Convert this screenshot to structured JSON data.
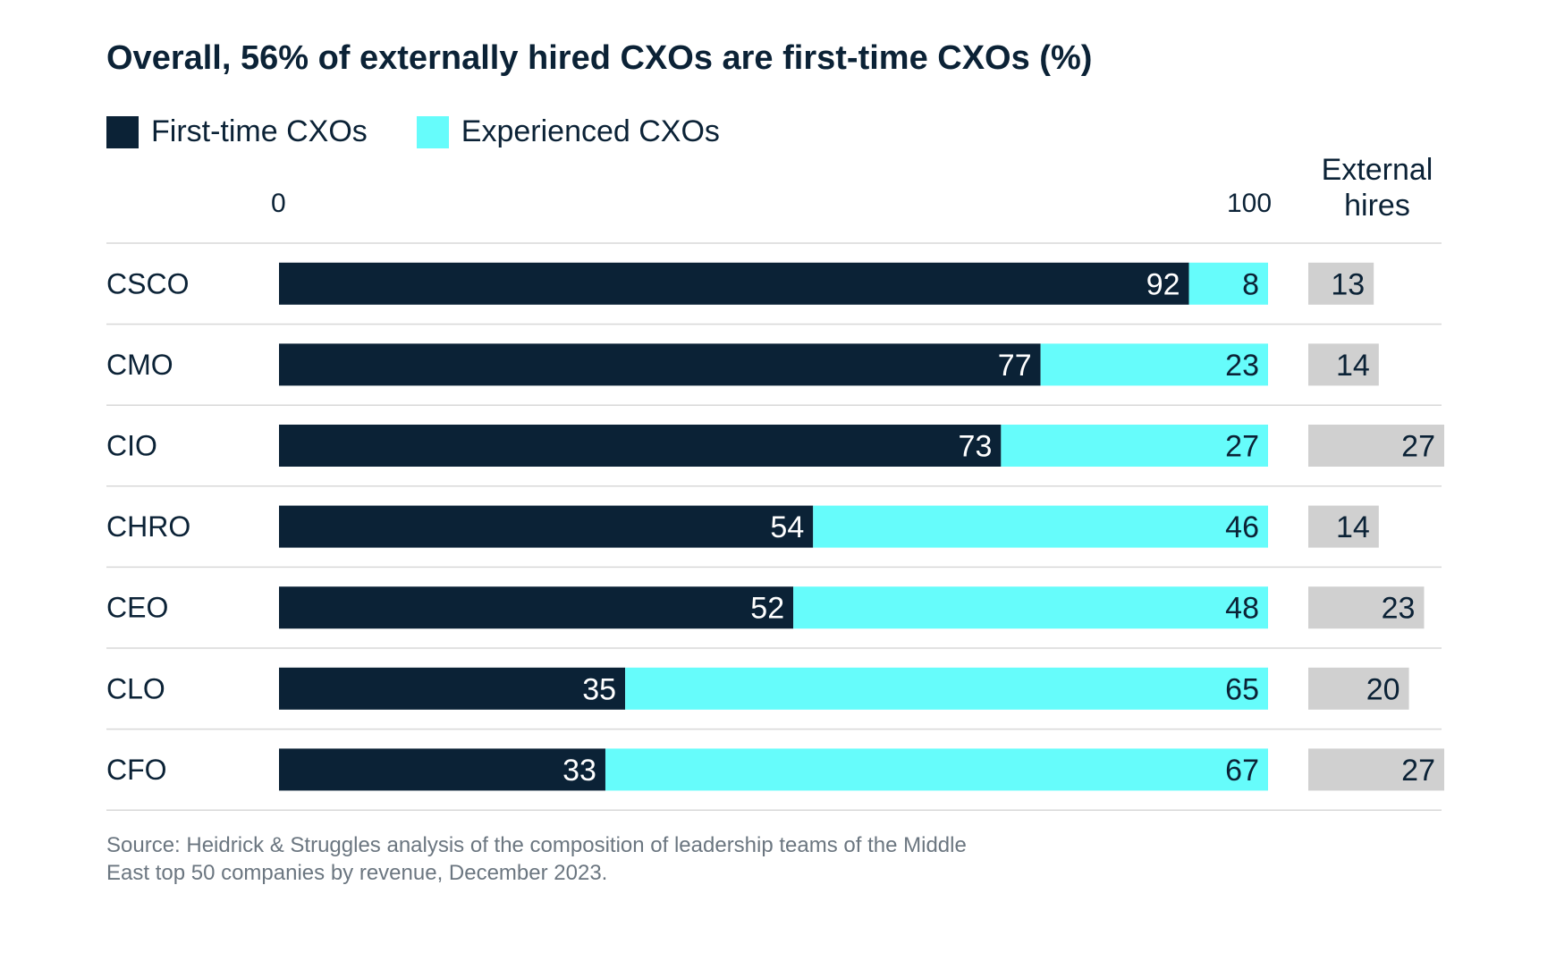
{
  "title": "Overall, 56% of externally hired CXOs are first-time CXOs (%)",
  "legend": [
    {
      "label": "First-time CXOs",
      "color": "#0b2236"
    },
    {
      "label": "Experienced CXOs",
      "color": "#66fcfb"
    }
  ],
  "axis": {
    "min_label": "0",
    "max_label": "100"
  },
  "hires_header": {
    "line1": "External",
    "line2": "hires"
  },
  "source": "Source: Heidrick & Struggles analysis of the composition of leadership teams of the Middle East top 50 companies by revenue, December 2023.",
  "chart_data": {
    "type": "bar",
    "orientation": "horizontal",
    "stacked": true,
    "title": "Overall, 56% of externally hired CXOs are first-time CXOs (%)",
    "categories": [
      "CSCO",
      "CMO",
      "CIO",
      "CHRO",
      "CEO",
      "CLO",
      "CFO"
    ],
    "series": [
      {
        "name": "First-time CXOs",
        "color": "#0b2236",
        "values": [
          92,
          77,
          73,
          54,
          52,
          35,
          33
        ]
      },
      {
        "name": "Experienced CXOs",
        "color": "#66fcfb",
        "values": [
          8,
          23,
          27,
          46,
          48,
          65,
          67
        ]
      }
    ],
    "external_hires": {
      "name": "External hires",
      "color": "#d0d0d0",
      "values": [
        13,
        14,
        27,
        14,
        23,
        20,
        27
      ],
      "max": 27
    },
    "xlim": [
      0,
      100
    ],
    "xlabel": "",
    "ylabel": ""
  }
}
